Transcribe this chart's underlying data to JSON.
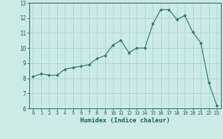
{
  "x": [
    0,
    1,
    2,
    3,
    4,
    5,
    6,
    7,
    8,
    9,
    10,
    11,
    12,
    13,
    14,
    15,
    16,
    17,
    18,
    19,
    20,
    21,
    22,
    23
  ],
  "y": [
    8.1,
    8.3,
    8.2,
    8.2,
    8.6,
    8.7,
    8.8,
    8.9,
    9.3,
    9.5,
    10.2,
    10.5,
    9.7,
    10.0,
    10.0,
    11.6,
    12.55,
    12.55,
    11.9,
    12.15,
    11.05,
    10.35,
    7.7,
    6.2
  ],
  "xlabel": "Humidex (Indice chaleur)",
  "line_color": "#2e7d6e",
  "marker_color": "#2e7d6e",
  "bg_color": "#cceae8",
  "grid_color": "#aad4d0",
  "text_color": "#1a5f5a",
  "ylim": [
    6,
    13
  ],
  "xlim": [
    -0.5,
    23.5
  ],
  "yticks": [
    6,
    7,
    8,
    9,
    10,
    11,
    12,
    13
  ],
  "xticks": [
    0,
    1,
    2,
    3,
    4,
    5,
    6,
    7,
    8,
    9,
    10,
    11,
    12,
    13,
    14,
    15,
    16,
    17,
    18,
    19,
    20,
    21,
    22,
    23
  ]
}
